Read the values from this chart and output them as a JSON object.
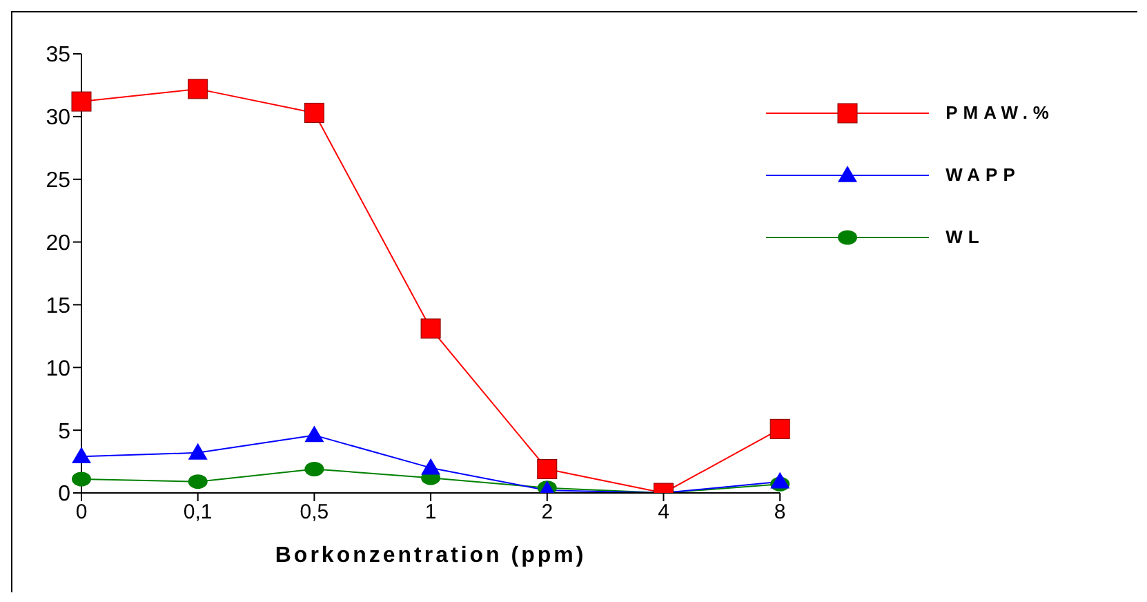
{
  "chart_data": {
    "type": "line",
    "xlabel": "Borkonzentration (ppm)",
    "categories": [
      "0",
      "0,1",
      "0,5",
      "1",
      "2",
      "4",
      "8"
    ],
    "series": [
      {
        "name": "PMAW.%",
        "color": "#ff0000",
        "marker": "square",
        "values": [
          31.2,
          32.2,
          30.3,
          13.1,
          1.9,
          0,
          5.1
        ]
      },
      {
        "name": "WAPP",
        "color": "#0000ff",
        "marker": "triangle",
        "values": [
          2.9,
          3.2,
          4.6,
          2.0,
          0.2,
          0,
          0.9
        ]
      },
      {
        "name": "WL",
        "color": "#008000",
        "marker": "circle",
        "values": [
          1.1,
          0.9,
          1.9,
          1.2,
          0.4,
          0,
          0.7
        ]
      }
    ],
    "ylim": [
      0,
      35
    ],
    "yticks": [
      0,
      5,
      10,
      15,
      20,
      25,
      30,
      35
    ],
    "grid": false,
    "legend": "top right"
  }
}
